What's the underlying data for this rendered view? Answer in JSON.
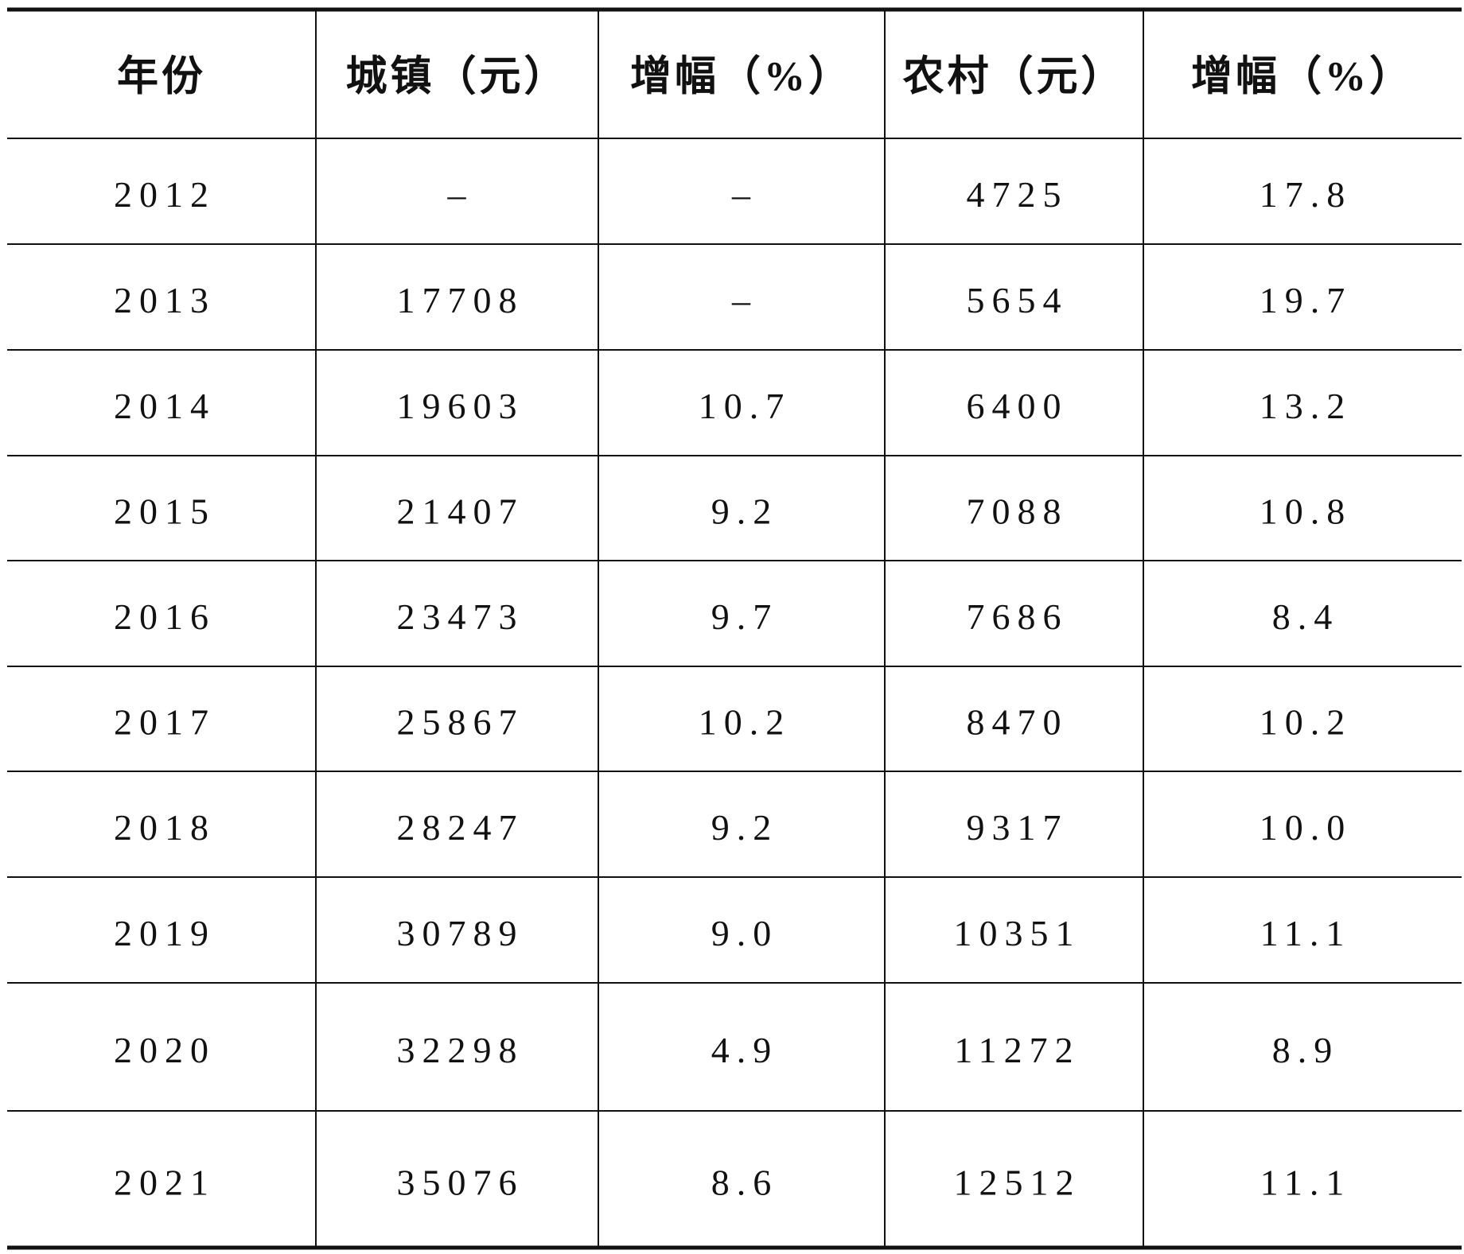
{
  "table": {
    "header": [
      "年份",
      "城镇（元）",
      "增幅（%）",
      "农村（元）",
      "增幅（%）"
    ],
    "rows": [
      [
        "2012",
        "–",
        "–",
        "4725",
        "17.8"
      ],
      [
        "2013",
        "17708",
        "–",
        "5654",
        "19.7"
      ],
      [
        "2014",
        "19603",
        "10.7",
        "6400",
        "13.2"
      ],
      [
        "2015",
        "21407",
        "9.2",
        "7088",
        "10.8"
      ],
      [
        "2016",
        "23473",
        "9.7",
        "7686",
        "8.4"
      ],
      [
        "2017",
        "25867",
        "10.2",
        "8470",
        "10.2"
      ],
      [
        "2018",
        "28247",
        "9.2",
        "9317",
        "10.0"
      ],
      [
        "2019",
        "30789",
        "9.0",
        "10351",
        "11.1"
      ],
      [
        "2020",
        "32298",
        "4.9",
        "11272",
        "8.9"
      ],
      [
        "2021",
        "35076",
        "8.6",
        "12512",
        "11.1"
      ]
    ]
  }
}
